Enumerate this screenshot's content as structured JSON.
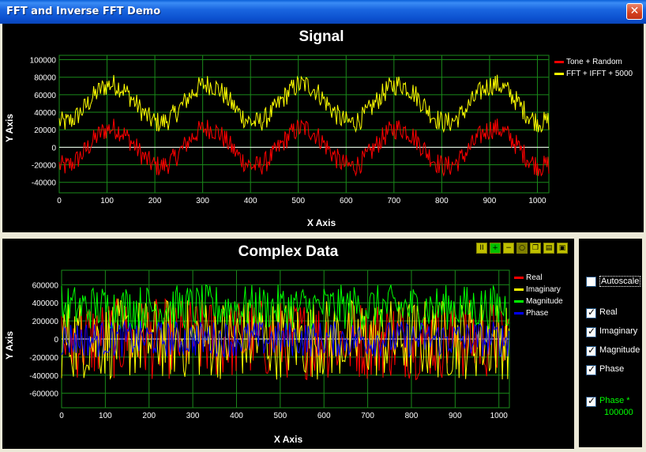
{
  "window": {
    "title": "FFT and Inverse FFT Demo",
    "close_glyph": "✕"
  },
  "signal_chart": {
    "title": "Signal",
    "xlabel": "X Axis",
    "ylabel": "Y Axis",
    "xlim": [
      0,
      1024
    ],
    "ylim": [
      -50000,
      100000
    ],
    "xticks": [
      "0",
      "100",
      "200",
      "300",
      "400",
      "500",
      "600",
      "700",
      "800",
      "900",
      "1000"
    ],
    "yticks": [
      "100000",
      "80000",
      "60000",
      "40000",
      "20000",
      "0",
      "-20000",
      "-40000"
    ],
    "legend": [
      "Tone + Random",
      "FFT + IFFT + 5000"
    ],
    "colors": {
      "red": "#ff0000",
      "yellow": "#ffff00",
      "grid": "#1a8a1a",
      "zero": "#ffffff"
    }
  },
  "complex_chart": {
    "title": "Complex Data",
    "xlabel": "X Axis",
    "ylabel": "Y Axis",
    "xlim": [
      0,
      1024
    ],
    "ylim": [
      -750000,
      750000
    ],
    "xticks": [
      "0",
      "100",
      "200",
      "300",
      "400",
      "500",
      "600",
      "700",
      "800",
      "900",
      "1000"
    ],
    "yticks": [
      "600000",
      "400000",
      "200000",
      "0",
      "-200000",
      "-400000",
      "-600000"
    ],
    "legend": [
      "Real",
      "Imaginary",
      "Magnitude",
      "Phase"
    ],
    "colors": {
      "red": "#ff0000",
      "yellow": "#ffff00",
      "green": "#00ff00",
      "blue": "#0000ff"
    }
  },
  "chart_data": [
    {
      "type": "line",
      "title": "Signal",
      "xlabel": "X Axis",
      "ylabel": "Y Axis",
      "xlim": [
        0,
        1024
      ],
      "ylim": [
        -50000,
        100000
      ],
      "grid": true,
      "legend_position": "top-right",
      "series": [
        {
          "name": "Tone + Random",
          "description_values": {
            "center": 0,
            "amplitude": 35000,
            "period": 200
          }
        },
        {
          "name": "FFT + IFFT + 5000",
          "description_values": {
            "center": 50000,
            "amplitude": 35000,
            "period": 200
          }
        }
      ]
    },
    {
      "type": "line",
      "title": "Complex Data",
      "xlabel": "X Axis",
      "ylabel": "Y Axis",
      "xlim": [
        0,
        1024
      ],
      "ylim": [
        -750000,
        750000
      ],
      "grid": true,
      "legend_position": "top-right",
      "series": [
        {
          "name": "Real"
        },
        {
          "name": "Imaginary"
        },
        {
          "name": "Magnitude"
        },
        {
          "name": "Phase"
        }
      ]
    }
  ],
  "toolbar": [
    "pause-icon",
    "zoom-in-icon",
    "zoom-out-icon",
    "zoom-reset-icon",
    "copy-icon",
    "print-icon",
    "save-icon"
  ],
  "side": {
    "autoscale": "Autoscale",
    "checks": [
      "Real",
      "Imaginary",
      "Magnitude",
      "Phase"
    ],
    "phase_label": "Phase *",
    "phase_value": "100000"
  }
}
